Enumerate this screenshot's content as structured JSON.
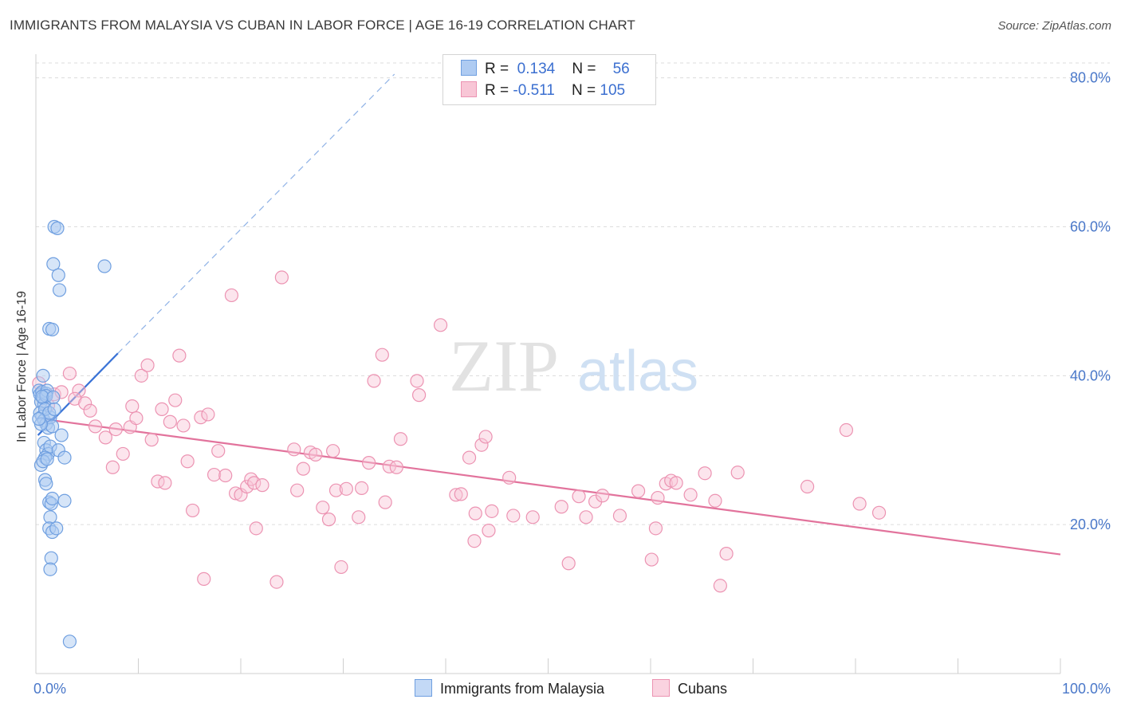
{
  "title": "IMMIGRANTS FROM MALAYSIA VS CUBAN IN LABOR FORCE | AGE 16-19 CORRELATION CHART",
  "source": "Source: ZipAtlas.com",
  "watermark": {
    "zip": "ZIP",
    "atlas": "atlas"
  },
  "legend": {
    "rows": [
      {
        "r_label": "R =",
        "r_value": "0.134",
        "n_label": "N =",
        "n_value": "56"
      },
      {
        "r_label": "R =",
        "r_value": "-0.511",
        "n_label": "N =",
        "n_value": "105"
      }
    ]
  },
  "colors": {
    "malaysia_fill": "#aecbf2",
    "malaysia_stroke": "#6f9fe0",
    "malaysia_line": "#3a73d6",
    "cubans_fill": "#f8c6d6",
    "cubans_stroke": "#ec93b2",
    "cubans_line": "#e2739c",
    "tick_label": "#4a78c9",
    "grid": "#dcdcdc"
  },
  "chart_data": {
    "type": "scatter",
    "title": "IMMIGRANTS FROM MALAYSIA VS CUBAN IN LABOR FORCE | AGE 16-19 CORRELATION CHART",
    "xlabel": "",
    "ylabel": "In Labor Force | Age 16-19",
    "xlim": [
      0,
      100
    ],
    "ylim": [
      0,
      82
    ],
    "x_tick_labels": [
      "0.0%",
      "100.0%"
    ],
    "y_ticks": [
      20,
      40,
      60,
      80
    ],
    "y_tick_labels": [
      "20.0%",
      "40.0%",
      "60.0%",
      "80.0%"
    ],
    "grid": "horizontal dashed",
    "legend_position": "bottom-center",
    "series": [
      {
        "name": "Immigrants from Malaysia",
        "R": 0.134,
        "N": 56,
        "trend": {
          "x": [
            0.2,
            8.0
          ],
          "y": [
            32.0,
            43.0
          ]
        },
        "trend_extension": {
          "x": [
            8.0,
            35.0
          ],
          "y": [
            43.0,
            80.5
          ]
        },
        "points": [
          [
            0.3,
            38
          ],
          [
            0.4,
            37.5
          ],
          [
            0.5,
            36.5
          ],
          [
            0.6,
            37.8
          ],
          [
            0.7,
            37
          ],
          [
            0.8,
            36.2
          ],
          [
            1.0,
            37.6
          ],
          [
            1.1,
            38
          ],
          [
            0.4,
            35
          ],
          [
            0.6,
            34.5
          ],
          [
            0.8,
            34
          ],
          [
            1.0,
            33.5
          ],
          [
            1.2,
            33
          ],
          [
            1.4,
            34.4
          ],
          [
            1.6,
            33.2
          ],
          [
            0.5,
            33.5
          ],
          [
            0.7,
            40
          ],
          [
            0.9,
            35.5
          ],
          [
            1.3,
            35
          ],
          [
            1.8,
            35.5
          ],
          [
            0.8,
            31
          ],
          [
            1.0,
            30
          ],
          [
            1.2,
            29.5
          ],
          [
            1.4,
            30.5
          ],
          [
            0.9,
            29
          ],
          [
            0.5,
            28
          ],
          [
            0.7,
            28.5
          ],
          [
            1.1,
            28.8
          ],
          [
            2.5,
            32
          ],
          [
            2.2,
            30
          ],
          [
            2.8,
            29
          ],
          [
            0.9,
            26
          ],
          [
            1.0,
            25.5
          ],
          [
            1.3,
            23
          ],
          [
            1.5,
            22.8
          ],
          [
            1.6,
            23.5
          ],
          [
            2.8,
            23.2
          ],
          [
            1.4,
            21
          ],
          [
            1.3,
            19.5
          ],
          [
            1.6,
            19
          ],
          [
            2.0,
            19.5
          ],
          [
            1.5,
            15.5
          ],
          [
            1.4,
            14
          ],
          [
            3.3,
            4.3
          ],
          [
            1.8,
            60
          ],
          [
            2.1,
            59.8
          ],
          [
            1.7,
            55
          ],
          [
            6.7,
            54.7
          ],
          [
            2.2,
            53.5
          ],
          [
            2.3,
            51.5
          ],
          [
            1.3,
            46.3
          ],
          [
            1.6,
            46.2
          ],
          [
            1.0,
            37.3
          ],
          [
            0.6,
            37.2
          ],
          [
            1.7,
            37.1
          ],
          [
            0.3,
            34.2
          ]
        ]
      },
      {
        "name": "Cubans",
        "R": -0.511,
        "N": 105,
        "trend": {
          "x": [
            0,
            100
          ],
          "y": [
            34.3,
            16.0
          ]
        },
        "points": [
          [
            0.3,
            39
          ],
          [
            0.8,
            37.5
          ],
          [
            1.2,
            36
          ],
          [
            1.8,
            37.5
          ],
          [
            2.5,
            37.8
          ],
          [
            3.3,
            40.3
          ],
          [
            4.2,
            38
          ],
          [
            3.8,
            36.9
          ],
          [
            4.8,
            36.3
          ],
          [
            5.3,
            35.3
          ],
          [
            5.8,
            33.2
          ],
          [
            6.8,
            31.7
          ],
          [
            7.5,
            27.7
          ],
          [
            7.8,
            32.8
          ],
          [
            8.5,
            29.5
          ],
          [
            9.2,
            33.1
          ],
          [
            9.4,
            35.9
          ],
          [
            9.8,
            34.3
          ],
          [
            10.3,
            40
          ],
          [
            10.9,
            41.4
          ],
          [
            11.3,
            31.4
          ],
          [
            11.9,
            25.8
          ],
          [
            12.3,
            35.5
          ],
          [
            12.6,
            25.6
          ],
          [
            13.1,
            33.8
          ],
          [
            13.6,
            36.7
          ],
          [
            14.0,
            42.7
          ],
          [
            14.4,
            33.3
          ],
          [
            14.8,
            28.5
          ],
          [
            15.3,
            21.9
          ],
          [
            16.1,
            34.4
          ],
          [
            16.4,
            12.7
          ],
          [
            16.8,
            34.8
          ],
          [
            17.4,
            26.7
          ],
          [
            17.8,
            29.9
          ],
          [
            18.5,
            26.6
          ],
          [
            19.1,
            50.8
          ],
          [
            19.5,
            24.2
          ],
          [
            20.0,
            24
          ],
          [
            20.6,
            25.1
          ],
          [
            21.0,
            26.1
          ],
          [
            21.3,
            25.6
          ],
          [
            21.5,
            19.5
          ],
          [
            22.1,
            25.3
          ],
          [
            23.5,
            12.3
          ],
          [
            24.0,
            53.2
          ],
          [
            25.2,
            30.1
          ],
          [
            25.5,
            24.6
          ],
          [
            26.1,
            27.5
          ],
          [
            26.8,
            29.7
          ],
          [
            27.3,
            29.4
          ],
          [
            28.0,
            22.3
          ],
          [
            28.6,
            20.7
          ],
          [
            29.0,
            29.9
          ],
          [
            29.3,
            24.6
          ],
          [
            29.8,
            14.3
          ],
          [
            30.3,
            24.8
          ],
          [
            31.5,
            21
          ],
          [
            31.8,
            24.9
          ],
          [
            32.5,
            28.3
          ],
          [
            33.0,
            39.3
          ],
          [
            33.8,
            42.8
          ],
          [
            34.1,
            23
          ],
          [
            34.5,
            27.8
          ],
          [
            35.2,
            27.7
          ],
          [
            35.6,
            31.5
          ],
          [
            37.2,
            39.3
          ],
          [
            37.4,
            37.4
          ],
          [
            39.5,
            46.8
          ],
          [
            41.0,
            24
          ],
          [
            41.5,
            24.1
          ],
          [
            42.3,
            29
          ],
          [
            42.8,
            17.8
          ],
          [
            42.9,
            21.5
          ],
          [
            43.5,
            30.7
          ],
          [
            43.9,
            31.8
          ],
          [
            44.2,
            19.2
          ],
          [
            44.5,
            21.8
          ],
          [
            46.6,
            21.2
          ],
          [
            48.5,
            21
          ],
          [
            51.3,
            22.4
          ],
          [
            52.0,
            14.8
          ],
          [
            53.0,
            23.8
          ],
          [
            53.7,
            21
          ],
          [
            54.6,
            23.1
          ],
          [
            55.3,
            23.9
          ],
          [
            57.0,
            21.2
          ],
          [
            58.8,
            24.5
          ],
          [
            60.1,
            15.3
          ],
          [
            60.5,
            19.5
          ],
          [
            60.7,
            23.6
          ],
          [
            61.5,
            25.5
          ],
          [
            62.0,
            25.9
          ],
          [
            62.5,
            25.6
          ],
          [
            63.9,
            24
          ],
          [
            65.3,
            26.9
          ],
          [
            66.3,
            23.2
          ],
          [
            66.8,
            11.8
          ],
          [
            67.4,
            16.1
          ],
          [
            68.5,
            27
          ],
          [
            75.3,
            25.1
          ],
          [
            79.1,
            32.7
          ],
          [
            80.4,
            22.8
          ],
          [
            82.3,
            21.6
          ],
          [
            46.2,
            26.3
          ]
        ]
      }
    ]
  },
  "bottom_legend": [
    "Immigrants from Malaysia",
    "Cubans"
  ]
}
